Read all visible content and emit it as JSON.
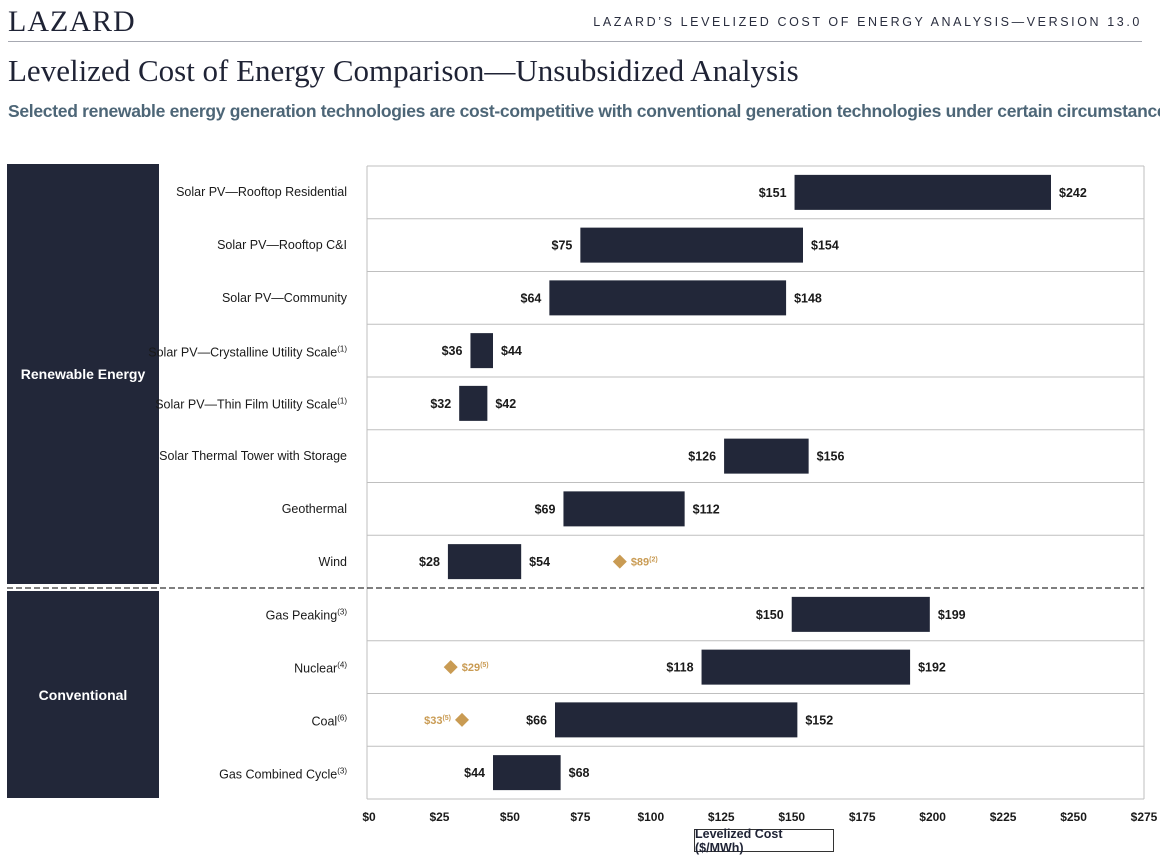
{
  "header": {
    "logo": "LAZARD",
    "analysis_label": "LAZARD’S LEVELIZED COST OF ENERGY ANALYSIS—VERSION 13.0",
    "title": "Levelized Cost of Energy Comparison—Unsubsidized Analysis",
    "subtitle": "Selected renewable energy generation technologies are cost-competitive with conventional generation technologies under certain circumstances"
  },
  "sections": {
    "renewable": "Renewable Energy",
    "conventional": "Conventional"
  },
  "colors": {
    "bar": "#222739",
    "marker": "#c99b53",
    "navy": "#222739",
    "grid": "#bfbfbf"
  },
  "chart_data": {
    "type": "bar",
    "orientation": "horizontal-range",
    "xlabel": "Levelized Cost ($/MWh)",
    "xlim": [
      0,
      275
    ],
    "xticks": [
      0,
      25,
      50,
      75,
      100,
      125,
      150,
      175,
      200,
      225,
      250,
      275
    ],
    "xtick_labels": [
      "$0",
      "$25",
      "$50",
      "$75",
      "$100",
      "$125",
      "$150",
      "$175",
      "$200",
      "$225",
      "$250",
      "$275"
    ],
    "rows": [
      {
        "label": "Solar PV—Rooftop Residential",
        "note": "",
        "group": "Renewable Energy",
        "low": 151,
        "high": 242,
        "low_label": "$151",
        "high_label": "$242"
      },
      {
        "label": "Solar PV—Rooftop C&I",
        "note": "",
        "group": "Renewable Energy",
        "low": 75,
        "high": 154,
        "low_label": "$75",
        "high_label": "$154"
      },
      {
        "label": "Solar PV—Community",
        "note": "",
        "group": "Renewable Energy",
        "low": 64,
        "high": 148,
        "low_label": "$64",
        "high_label": "$148"
      },
      {
        "label": "Solar PV—Crystalline Utility Scale",
        "note": "(1)",
        "group": "Renewable Energy",
        "low": 36,
        "high": 44,
        "low_label": "$36",
        "high_label": "$44"
      },
      {
        "label": "Solar PV—Thin Film Utility Scale",
        "note": "(1)",
        "group": "Renewable Energy",
        "low": 32,
        "high": 42,
        "low_label": "$32",
        "high_label": "$42"
      },
      {
        "label": "Solar Thermal Tower with Storage",
        "note": "",
        "group": "Renewable Energy",
        "low": 126,
        "high": 156,
        "low_label": "$126",
        "high_label": "$156"
      },
      {
        "label": "Geothermal",
        "note": "",
        "group": "Renewable Energy",
        "low": 69,
        "high": 112,
        "low_label": "$69",
        "high_label": "$112"
      },
      {
        "label": "Wind",
        "note": "",
        "group": "Renewable Energy",
        "low": 28,
        "high": 54,
        "low_label": "$28",
        "high_label": "$54",
        "marker": {
          "value": 89,
          "label": "$89",
          "note": "(2)",
          "side": "right"
        }
      },
      {
        "label": "Gas Peaking",
        "note": "(3)",
        "group": "Conventional",
        "low": 150,
        "high": 199,
        "low_label": "$150",
        "high_label": "$199"
      },
      {
        "label": "Nuclear",
        "note": "(4)",
        "group": "Conventional",
        "low": 118,
        "high": 192,
        "low_label": "$118",
        "high_label": "$192",
        "marker": {
          "value": 29,
          "label": "$29",
          "note": "(5)",
          "side": "right"
        }
      },
      {
        "label": "Coal",
        "note": "(6)",
        "group": "Conventional",
        "low": 66,
        "high": 152,
        "low_label": "$66",
        "high_label": "$152",
        "marker": {
          "value": 33,
          "label": "$33",
          "note": "(5)",
          "side": "left"
        }
      },
      {
        "label": "Gas Combined Cycle",
        "note": "(3)",
        "group": "Conventional",
        "low": 44,
        "high": 68,
        "low_label": "$44",
        "high_label": "$68"
      }
    ]
  }
}
